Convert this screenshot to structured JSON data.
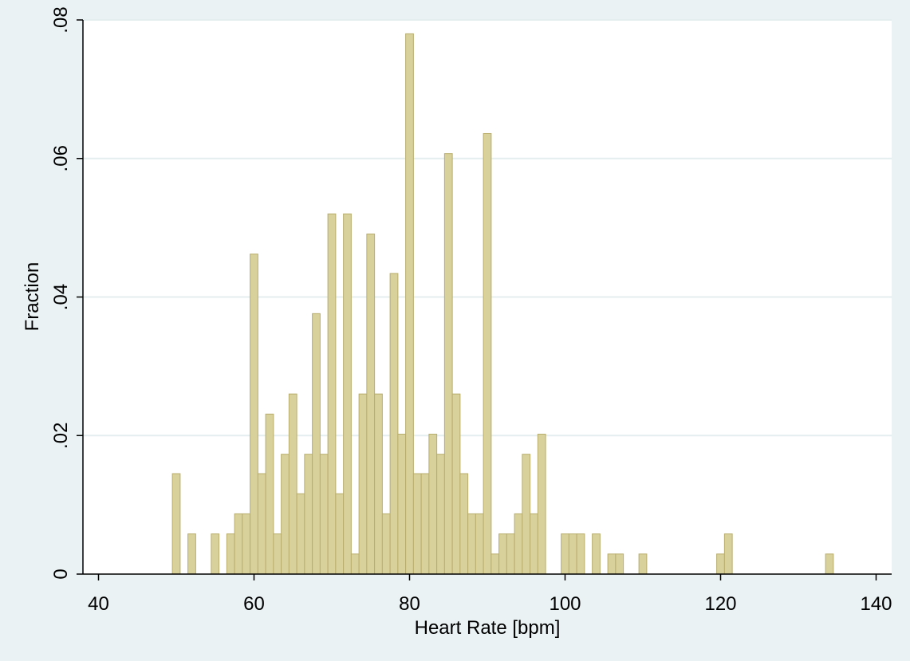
{
  "chart_data": {
    "type": "histogram",
    "x_label": "Heart Rate [bpm]",
    "y_label": "Fraction",
    "bins": [
      49.5,
      50.5,
      51.5,
      52.5,
      53.5,
      54.5,
      55.5,
      56.5,
      57.5,
      58.5,
      59.5,
      60.5,
      61.5,
      62.5,
      63.5,
      64.5,
      65.5,
      66.5,
      67.5,
      68.5,
      69.5,
      70.5,
      71.5,
      72.5,
      73.5,
      74.5,
      75.5,
      76.5,
      77.5,
      78.5,
      79.5,
      80.5,
      81.5,
      82.5,
      83.5,
      84.5,
      85.5,
      86.5,
      87.5,
      88.5,
      89.5,
      90.5,
      91.5,
      92.5,
      93.5,
      94.5,
      95.5,
      96.5,
      97.5,
      98.5,
      99.5,
      100.5,
      101.5,
      102.5,
      103.5,
      104.5,
      105.5,
      106.5,
      107.5,
      108.5,
      109.5,
      110.5,
      111.5,
      112.5,
      113.5,
      114.5,
      115.5,
      116.5,
      117.5,
      118.5,
      119.5,
      120.5,
      121.5,
      122.5,
      123.5,
      124.5,
      125.5,
      126.5,
      127.5,
      128.5,
      129.5,
      130.5,
      131.5,
      132.5,
      133.5,
      134.5
    ],
    "values": [
      0.0145,
      0,
      0.0058,
      0,
      0,
      0.0058,
      0,
      0.0058,
      0.0087,
      0.0087,
      0.0462,
      0.0145,
      0.0231,
      0.0058,
      0.0173,
      0.026,
      0.0116,
      0.0173,
      0.0376,
      0.0173,
      0.052,
      0.0116,
      0.052,
      0.0029,
      0.026,
      0.0491,
      0.026,
      0.0087,
      0.0434,
      0.0202,
      0.078,
      0.0145,
      0.0145,
      0.0202,
      0.0173,
      0.0607,
      0.026,
      0.0145,
      0.0087,
      0.0087,
      0.0636,
      0.0029,
      0.0058,
      0.0058,
      0.0087,
      0.0173,
      0.0087,
      0.0202,
      0,
      0,
      0.0058,
      0.0058,
      0.0058,
      0,
      0.0058,
      0,
      0.0029,
      0.0029,
      0,
      0,
      0.0029,
      0,
      0,
      0,
      0,
      0,
      0,
      0,
      0,
      0,
      0.0029,
      0.0058,
      0,
      0,
      0,
      0,
      0,
      0,
      0,
      0,
      0,
      0,
      0,
      0,
      0.0029
    ],
    "color": "#d9d19b",
    "edge_color": "#b8ad6c",
    "xlim": [
      38,
      142
    ],
    "ylim": [
      0,
      0.08
    ],
    "xticks": [
      40,
      60,
      80,
      100,
      120,
      140
    ],
    "yticks": [
      0,
      {
        "value": 0.02,
        "label": ".02"
      },
      {
        "value": 0.04,
        "label": ".04"
      },
      {
        "value": 0.06,
        "label": ".06"
      },
      {
        "value": 0.08,
        "label": ".08"
      }
    ],
    "grid": true
  }
}
